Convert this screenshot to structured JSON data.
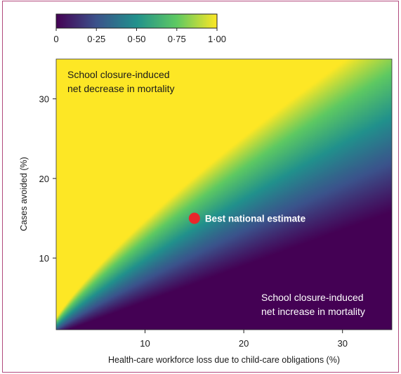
{
  "chart_data": {
    "type": "heatmap",
    "xlabel": "Health-care workforce loss due to child-care obligations (%)",
    "ylabel": "Cases avoided (%)",
    "xlim": [
      1,
      35
    ],
    "ylim": [
      1,
      35
    ],
    "x_ticks": [
      10,
      20,
      30
    ],
    "y_ticks": [
      10,
      20,
      30
    ],
    "colorbar": {
      "range": [
        0,
        1
      ],
      "ticks": [
        0,
        0.25,
        0.5,
        0.75,
        1.0
      ],
      "tick_labels": [
        "0",
        "0·25",
        "0·50",
        "0·75",
        "1·00"
      ],
      "colormap": [
        "#440154",
        "#3b528b",
        "#21918c",
        "#5ec962",
        "#fde725"
      ]
    },
    "regions": {
      "upper_left": [
        "School closure-induced",
        "net decrease in mortality"
      ],
      "lower_right": [
        "School closure-induced",
        "net increase in mortality"
      ]
    },
    "point": {
      "label": "Best national estimate",
      "x": 15,
      "y": 15,
      "color": "#e8262b"
    }
  }
}
